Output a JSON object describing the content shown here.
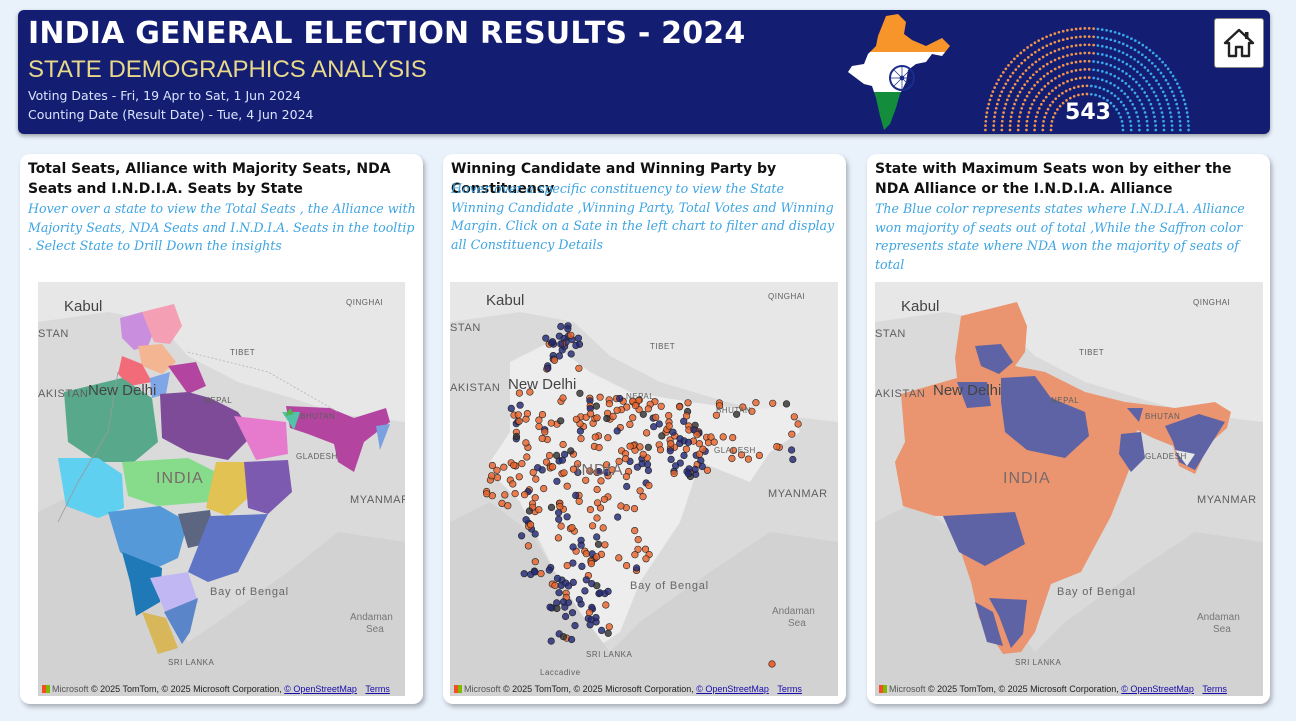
{
  "header": {
    "title": "INDIA GENERAL ELECTION RESULTS - 2024",
    "subtitle": "STATE DEMOGRAPHICS ANALYSIS",
    "voting_dates": "Voting Dates - Fri, 19 Apr to Sat, 1 Jun 2024",
    "counting_date": "Counting Date (Result Date) - Tue, 4 Jun 2024",
    "total_seats": "543",
    "home_icon": "home-icon",
    "colors": {
      "background": "#131e72",
      "subtitle": "#e7d88a",
      "nda": "#f0944d",
      "india": "#39a7ea"
    }
  },
  "cards": [
    {
      "title": "Total Seats, Alliance with Majority Seats, NDA Seats and I.N.D.I.A. Seats by State",
      "description": "Hover over a state to view the Total Seats , the Alliance with Majority Seats, NDA Seats and I.N.D.I.A. Seats in the tooltip . Select State to Drill Down the insights"
    },
    {
      "title": "Winning Candidate and Winning Party by Constituency",
      "description": "Hover over a specific constituency to view the State Winning Candidate ,Winning Party, Total Votes and Winning Margin. Click on a Sate in the left chart to filter and display all Constituency Details"
    },
    {
      "title": "State with Maximum Seats won by either the NDA Alliance or the I.N.D.I.A. Alliance",
      "description": "The Blue color represents states where I.N.D.I.A. Alliance won majority of seats out of total ,While the Saffron color  represents state where NDA won the majority of seats of total"
    }
  ],
  "map_labels": {
    "kabul": "Kabul",
    "qinghai": "QINGHAI",
    "stan": "STAN",
    "tibet": "TIBET",
    "new_delhi": "New Delhi",
    "akistan": "AKISTAN",
    "nepal": "NEPAL",
    "bhutan": "BHUTAN",
    "bangladesh": "GLADESH",
    "india": "INDIA",
    "myanmar": "MYANMAR",
    "bay_of_bengal": "Bay of Bengal",
    "andaman": "Andaman",
    "sea": "Sea",
    "sri_lanka": "SRI LANKA",
    "laccadive": "Laccadive",
    "microsoft": "Microsoft",
    "copyright": "© 2025 TomTom, © 2025 Microsoft Corporation,",
    "osm": "© OpenStreetMap",
    "terms": "Terms"
  },
  "colors": {
    "nda_map": "#ea9470",
    "india_map": "#5d63a4",
    "nda_dot": "#e8642c",
    "india_dot": "#232a78",
    "other_dot": "#333333"
  }
}
